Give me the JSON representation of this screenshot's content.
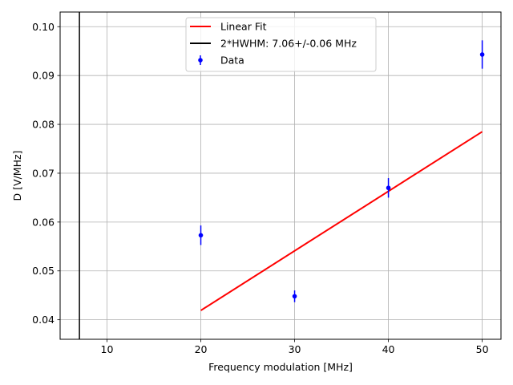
{
  "chart_data": {
    "type": "scatter",
    "xlabel": "Frequency modulation [MHz]",
    "ylabel": "D [V/MHz]",
    "xlim": [
      5,
      52
    ],
    "ylim": [
      0.036,
      0.103
    ],
    "xticks": [
      10,
      20,
      30,
      40,
      50
    ],
    "xtick_labels": [
      "10",
      "20",
      "30",
      "40",
      "50"
    ],
    "yticks": [
      0.04,
      0.05,
      0.06,
      0.07,
      0.08,
      0.09,
      0.1
    ],
    "ytick_labels": [
      "0.04",
      "0.05",
      "0.06",
      "0.07",
      "0.08",
      "0.09",
      "0.10"
    ],
    "grid": true,
    "legend_position": "top-center",
    "series": [
      {
        "name": "Linear Fit",
        "kind": "line",
        "color": "#ff0000",
        "x": [
          20,
          50
        ],
        "y": [
          0.0419,
          0.0785
        ]
      },
      {
        "name": "2*HWHM: 7.06+/-0.06 MHz",
        "kind": "vline",
        "color": "#000000",
        "x": 7.06
      },
      {
        "name": "Data",
        "kind": "errorbar",
        "color": "#0000ff",
        "x": [
          20,
          30,
          40,
          50
        ],
        "y": [
          0.0573,
          0.0448,
          0.067,
          0.0943
        ],
        "yerr": [
          0.002,
          0.0012,
          0.002,
          0.0029
        ]
      }
    ]
  }
}
